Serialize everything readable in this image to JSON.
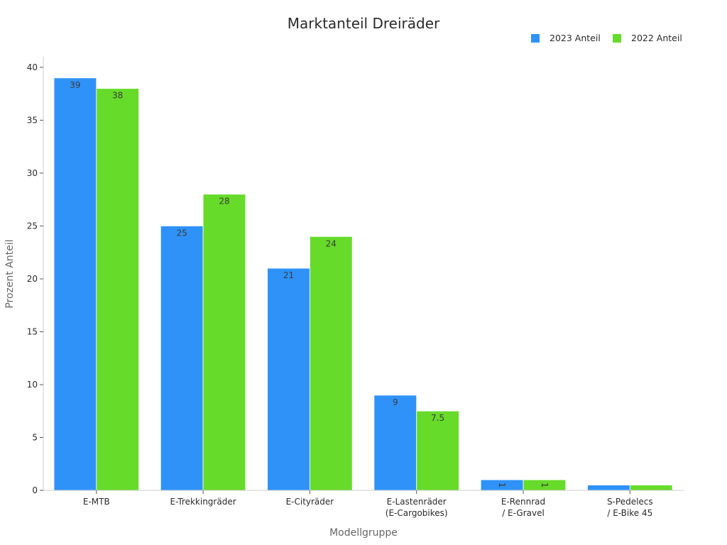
{
  "chart_data": {
    "type": "bar",
    "title": "Marktanteil Dreiräder",
    "xlabel": "Modellgruppe",
    "ylabel": "Prozent Anteil",
    "categories": [
      [
        "E-MTB"
      ],
      [
        "E-Trekkingräder"
      ],
      [
        "E-Cityräder"
      ],
      [
        "E-Lastenräder",
        "(E-Cargobikes)"
      ],
      [
        "E-Rennrad",
        "/ E-Gravel"
      ],
      [
        "S-Pedelecs",
        "/ E-Bike 45"
      ]
    ],
    "series": [
      {
        "name": "2023 Anteil",
        "color": "#2f92f8",
        "values": [
          39,
          25,
          21,
          9,
          1,
          0.5
        ],
        "labels": [
          "39",
          "25",
          "21",
          "9",
          "1",
          ""
        ]
      },
      {
        "name": "2022 Anteil",
        "color": "#66db2a",
        "values": [
          38,
          28,
          24,
          7.5,
          1,
          0.5
        ],
        "labels": [
          "38",
          "28",
          "24",
          "7.5",
          "1",
          ""
        ]
      }
    ],
    "ylim": [
      0,
      41
    ],
    "yticks": [
      0,
      5,
      10,
      15,
      20,
      25,
      30,
      35,
      40
    ],
    "grid": false,
    "legend_position": "top-right"
  }
}
